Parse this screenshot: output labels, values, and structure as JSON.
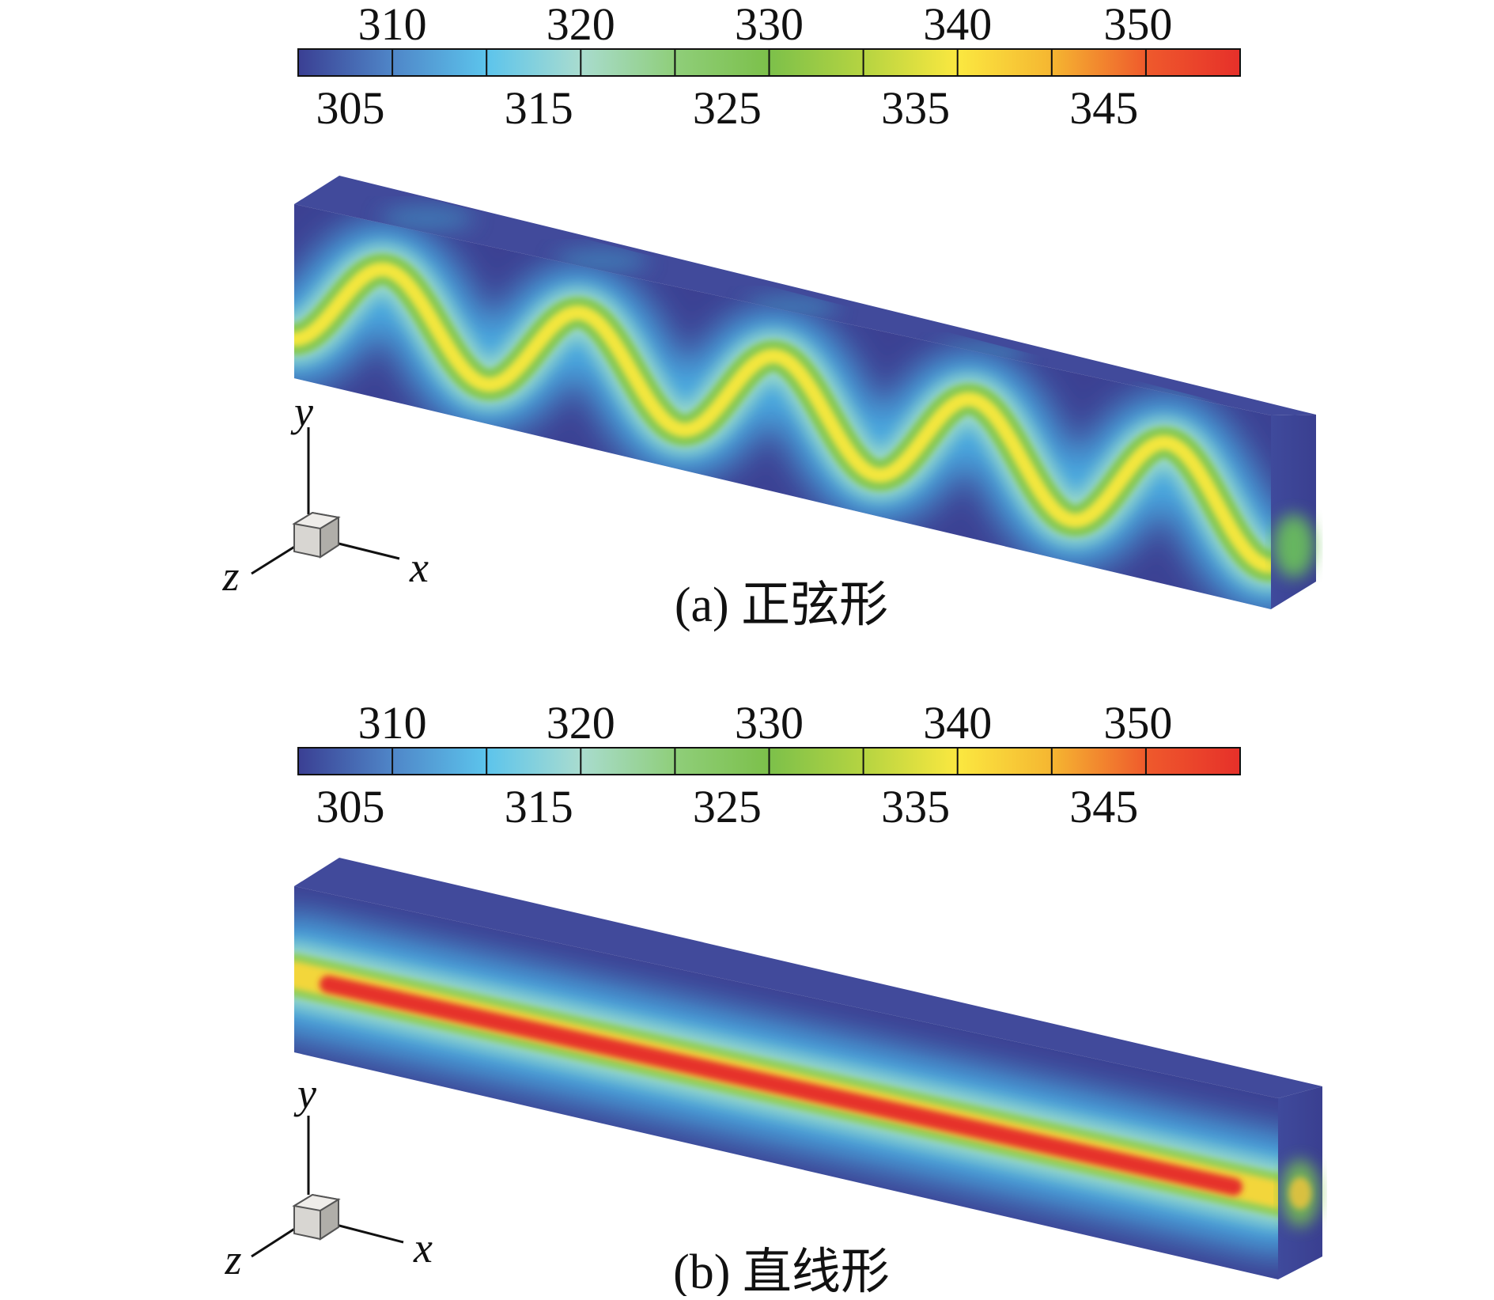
{
  "colorbar": {
    "colormap": [
      "#3a3f93",
      "#4f86c8",
      "#5cc4ec",
      "#a9dccf",
      "#8fce7a",
      "#7cc04a",
      "#b5d441",
      "#fbe840",
      "#f5b631",
      "#ef5a2c",
      "#e6302a"
    ],
    "top_ticks": [
      "310",
      "320",
      "330",
      "340",
      "350"
    ],
    "bottom_ticks": [
      "305",
      "315",
      "325",
      "335",
      "345"
    ]
  },
  "panels": [
    {
      "id": "a",
      "caption": "(a) 正弦形",
      "pattern": "sine",
      "axes": {
        "x": "x",
        "y": "y",
        "z": "z"
      }
    },
    {
      "id": "b",
      "caption": "(b) 直线形",
      "pattern": "straight",
      "axes": {
        "x": "x",
        "y": "y",
        "z": "z"
      }
    }
  ]
}
